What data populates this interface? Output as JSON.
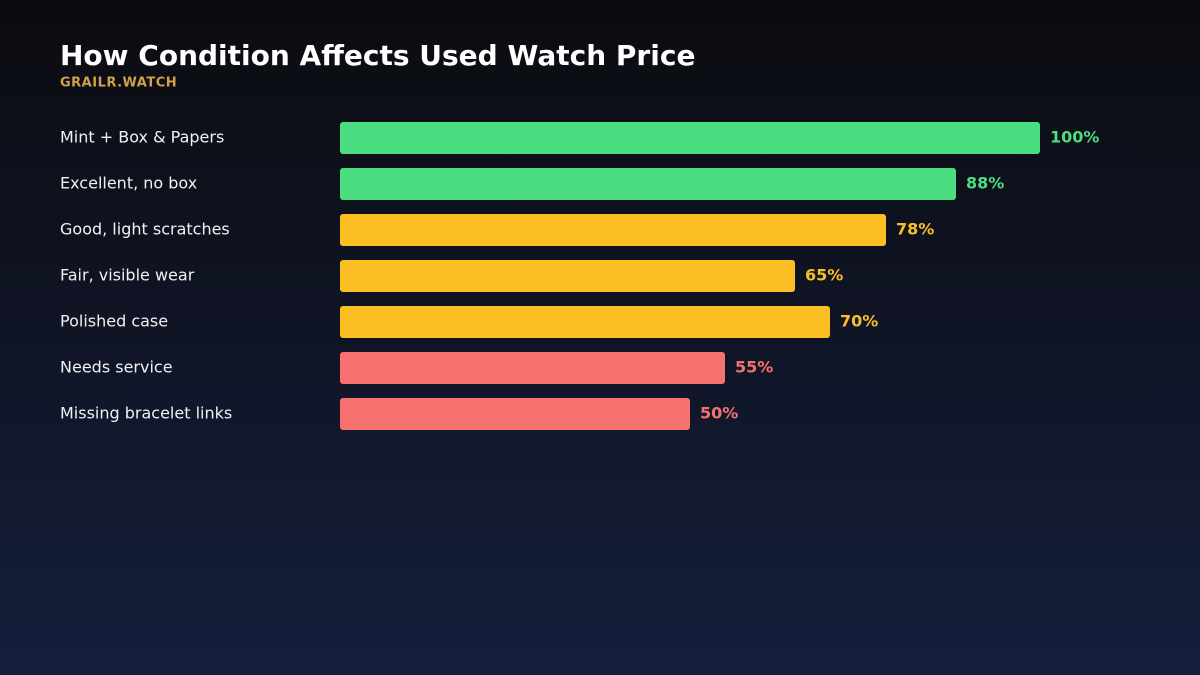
{
  "chart_data": {
    "type": "bar",
    "orientation": "horizontal",
    "title": "How Condition Affects Used Watch Price",
    "subtitle": "GRAILR.WATCH",
    "categories": [
      "Mint + Box & Papers",
      "Excellent, no box",
      "Good, light scratches",
      "Fair, visible wear",
      "Polished case",
      "Needs service",
      "Missing bracelet links"
    ],
    "values": [
      100,
      88,
      78,
      65,
      70,
      55,
      50
    ],
    "value_labels": [
      "100%",
      "88%",
      "78%",
      "65%",
      "70%",
      "55%",
      "50%"
    ],
    "colors": [
      "#4ade80",
      "#4ade80",
      "#fbbf24",
      "#fbbf24",
      "#fbbf24",
      "#f87171",
      "#f87171"
    ],
    "xlim": [
      0,
      100
    ]
  }
}
